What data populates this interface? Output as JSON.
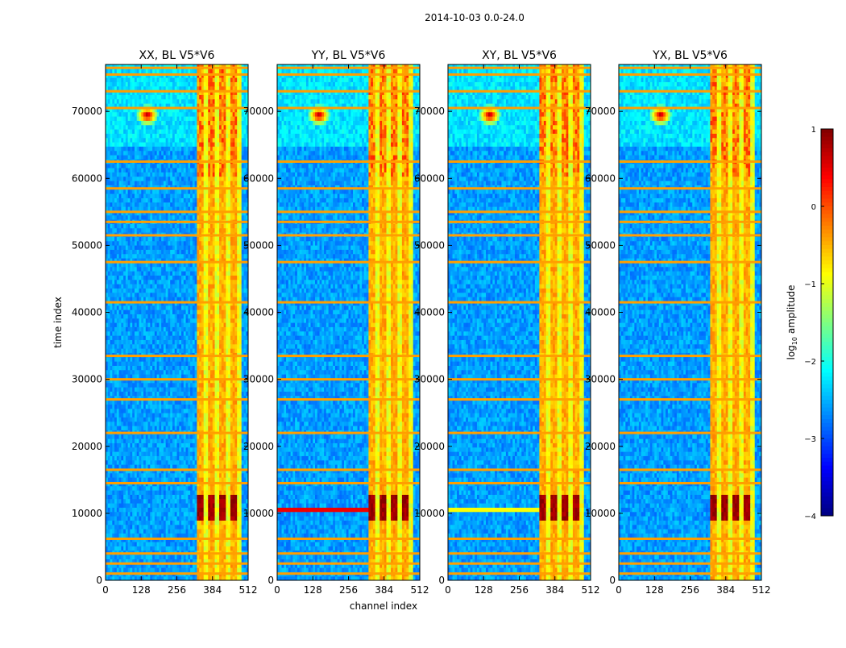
{
  "figure": {
    "title": "2014-10-03 0.0-24.0"
  },
  "chart_data": {
    "type": "heatmap",
    "shared_xlabel": "channel index",
    "shared_ylabel": "time index",
    "x_range": [
      0,
      512
    ],
    "y_range": [
      0,
      77000
    ],
    "x_ticks": [
      0,
      128,
      256,
      384,
      512
    ],
    "y_ticks": [
      0,
      10000,
      20000,
      30000,
      40000,
      50000,
      60000,
      70000
    ],
    "panels": [
      {
        "title": "XX, BL V5*V6",
        "strong_band_x": [
          325,
          485
        ],
        "dense_band_y": [
          65000,
          77000
        ],
        "burst": {
          "x": 150,
          "y": 69500
        },
        "hot_block_y": [
          9000,
          13000
        ],
        "hot_block_x": [
          325,
          485
        ],
        "line_at_10500": false
      },
      {
        "title": "YY, BL V5*V6",
        "strong_band_x": [
          325,
          485
        ],
        "dense_band_y": [
          65000,
          77000
        ],
        "burst": {
          "x": 150,
          "y": 69500
        },
        "hot_block_y": [
          9000,
          13000
        ],
        "hot_block_x": [
          325,
          485
        ],
        "line_at_10500": true
      },
      {
        "title": "XY, BL V5*V6",
        "strong_band_x": [
          325,
          485
        ],
        "dense_band_y": [
          65000,
          77000
        ],
        "burst": {
          "x": 150,
          "y": 69500
        },
        "hot_block_y": [
          9000,
          13000
        ],
        "hot_block_x": [
          325,
          485
        ],
        "line_at_10500": true
      },
      {
        "title": "YX, BL V5*V6",
        "strong_band_x": [
          325,
          485
        ],
        "dense_band_y": [
          65000,
          77000
        ],
        "burst": {
          "x": 150,
          "y": 69500
        },
        "hot_block_y": [
          9000,
          13000
        ],
        "hot_block_x": [
          325,
          485
        ],
        "line_at_10500": false
      }
    ],
    "rfi_rows": [
      1000,
      2500,
      4000,
      6200,
      14500,
      16500,
      22000,
      27000,
      30000,
      33500,
      41500,
      47500,
      51500,
      53500,
      55000,
      58500,
      62500,
      70500,
      73000,
      75500,
      76500
    ],
    "colorbar": {
      "label": "log10 amplitude",
      "label_main": "log",
      "label_sub": "10",
      "label_rest": " amplitude",
      "range": [
        -4,
        1
      ],
      "ticks": [
        1,
        0,
        -1,
        -2,
        -3,
        -4
      ],
      "tick_labels": [
        "1",
        "0",
        "−1",
        "−2",
        "−3",
        "−4"
      ],
      "colormap": "jet"
    }
  }
}
